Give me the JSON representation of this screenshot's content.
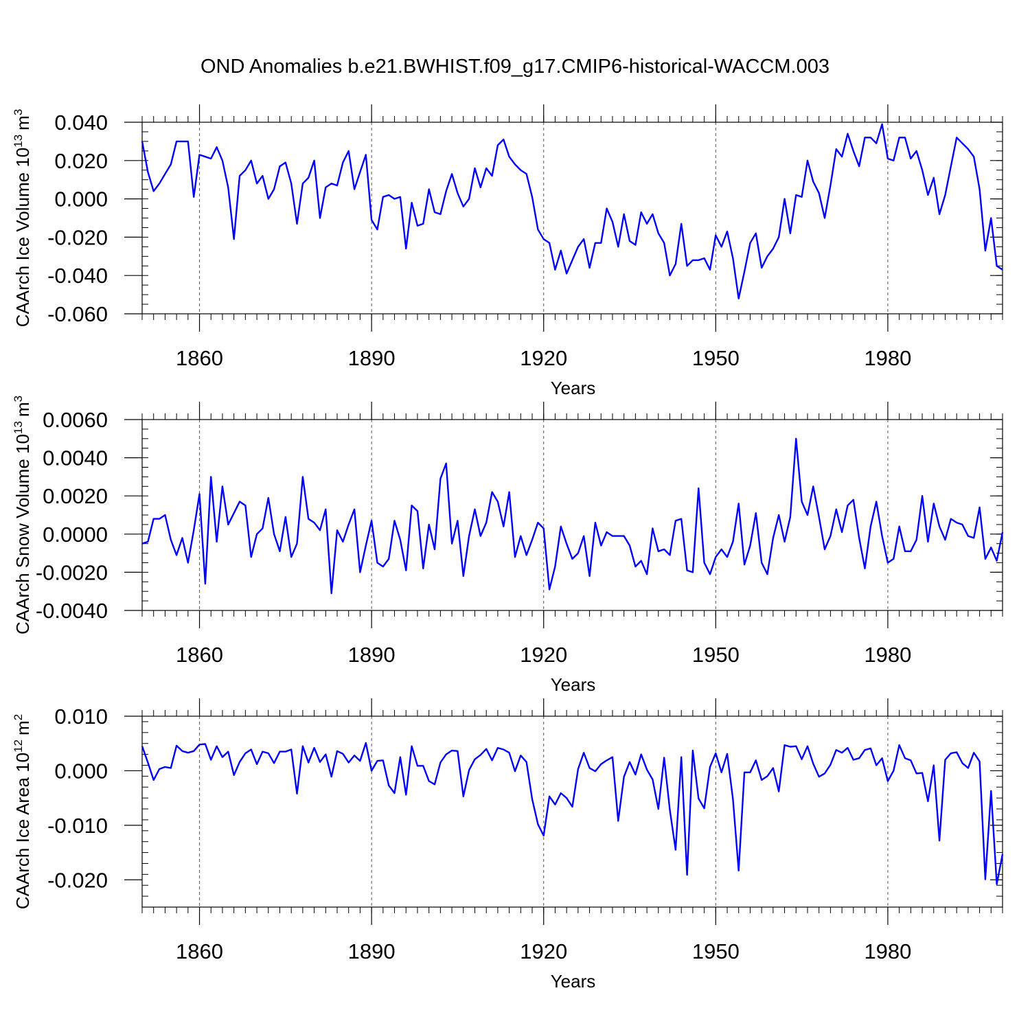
{
  "title": "OND Anomalies b.e21.BWHIST.f09_g17.CMIP6-historical-WACCM.003",
  "line_color": "#0000ff",
  "chart_data": [
    {
      "type": "line",
      "ylabel_main": "CAArch Ice Volume 10",
      "ylabel_exp": "13",
      "ylabel_unit": "m",
      "ylabel_unit_exp": "3",
      "xlabel": "Years",
      "xlim": [
        1850,
        2000
      ],
      "ylim": [
        -0.06,
        0.04
      ],
      "x_ticks": [
        1860,
        1890,
        1920,
        1950,
        1980
      ],
      "x_tick_labels": [
        "1860",
        "1890",
        "1920",
        "1950",
        "1980"
      ],
      "y_ticks": [
        -0.06,
        -0.04,
        -0.02,
        0.0,
        0.02,
        0.04
      ],
      "y_tick_labels": [
        "-0.060",
        "-0.040",
        "-0.020",
        "0.000",
        "0.020",
        "0.040"
      ],
      "y_minor_step": 0.005,
      "x_start": 1850,
      "values": [
        0.03,
        0.014,
        0.004,
        0.008,
        0.013,
        0.018,
        0.03,
        0.03,
        0.03,
        0.001,
        0.023,
        0.022,
        0.021,
        0.027,
        0.02,
        0.006,
        -0.021,
        0.012,
        0.015,
        0.02,
        0.008,
        0.012,
        0.0,
        0.005,
        0.017,
        0.019,
        0.008,
        -0.013,
        0.008,
        0.011,
        0.02,
        -0.01,
        0.006,
        0.008,
        0.007,
        0.019,
        0.025,
        0.005,
        0.014,
        0.023,
        -0.011,
        -0.016,
        0.001,
        0.002,
        0.0,
        0.001,
        -0.026,
        -0.002,
        -0.014,
        -0.013,
        0.005,
        -0.007,
        -0.008,
        0.004,
        0.013,
        0.003,
        -0.004,
        0.0,
        0.016,
        0.006,
        0.016,
        0.012,
        0.028,
        0.031,
        0.022,
        0.018,
        0.015,
        0.013,
        0.001,
        -0.016,
        -0.021,
        -0.023,
        -0.037,
        -0.027,
        -0.039,
        -0.032,
        -0.025,
        -0.021,
        -0.036,
        -0.023,
        -0.023,
        -0.005,
        -0.012,
        -0.025,
        -0.008,
        -0.022,
        -0.024,
        -0.007,
        -0.013,
        -0.008,
        -0.018,
        -0.023,
        -0.04,
        -0.034,
        -0.013,
        -0.035,
        -0.032,
        -0.032,
        -0.031,
        -0.037,
        -0.019,
        -0.025,
        -0.017,
        -0.031,
        -0.052,
        -0.038,
        -0.023,
        -0.018,
        -0.036,
        -0.03,
        -0.026,
        -0.02,
        0.0,
        -0.018,
        0.002,
        0.001,
        0.02,
        0.009,
        0.003,
        -0.01,
        0.007,
        0.026,
        0.022,
        0.034,
        0.025,
        0.017,
        0.032,
        0.032,
        0.029,
        0.039,
        0.021,
        0.02,
        0.032,
        0.032,
        0.021,
        0.025,
        0.015,
        0.002,
        0.011,
        -0.008,
        0.002,
        0.017,
        0.032,
        0.029,
        0.026,
        0.022,
        0.005,
        -0.027,
        -0.01,
        -0.035,
        -0.037
      ]
    },
    {
      "type": "line",
      "ylabel_main": "CAArch Snow Volume 10",
      "ylabel_exp": "13",
      "ylabel_unit": "m",
      "ylabel_unit_exp": "3",
      "xlabel": "Years",
      "xlim": [
        1850,
        2000
      ],
      "ylim": [
        -0.004,
        0.006
      ],
      "x_ticks": [
        1860,
        1890,
        1920,
        1950,
        1980
      ],
      "x_tick_labels": [
        "1860",
        "1890",
        "1920",
        "1950",
        "1980"
      ],
      "y_ticks": [
        -0.004,
        -0.002,
        0.0,
        0.002,
        0.004,
        0.006
      ],
      "y_tick_labels": [
        "-0.0040",
        "-0.0020",
        "0.0000",
        "0.0020",
        "0.0040",
        "0.0060"
      ],
      "y_minor_step": 0.0005,
      "x_start": 1850,
      "values": [
        -0.0005,
        -0.0004,
        0.0008,
        0.0008,
        0.001,
        -0.0003,
        -0.0011,
        -0.0002,
        -0.0015,
        0.0002,
        0.0021,
        -0.0026,
        0.003,
        -0.0004,
        0.0025,
        0.0005,
        0.0011,
        0.0017,
        0.0015,
        -0.0012,
        0.0,
        0.0003,
        0.0019,
        0.0,
        -0.0009,
        0.0009,
        -0.0012,
        -0.0005,
        0.003,
        0.0008,
        0.0006,
        0.0002,
        0.0013,
        -0.0031,
        0.0002,
        -0.0004,
        0.0005,
        0.0013,
        -0.002,
        -0.0006,
        0.0007,
        -0.0015,
        -0.0017,
        -0.0013,
        0.0007,
        -0.0003,
        -0.0019,
        0.0015,
        0.0012,
        -0.0018,
        0.0005,
        -0.0008,
        0.0029,
        0.0037,
        -0.0005,
        0.0007,
        -0.0022,
        -0.0001,
        0.0013,
        -0.0001,
        0.0006,
        0.0022,
        0.0017,
        0.0004,
        0.0022,
        -0.0012,
        -0.0001,
        -0.0011,
        -0.0003,
        0.0006,
        0.0003,
        -0.0029,
        -0.0017,
        0.0004,
        -0.0005,
        -0.0013,
        -0.001,
        -0.0001,
        -0.0022,
        0.0006,
        -0.0006,
        0.0001,
        -0.0001,
        -0.0001,
        -0.0001,
        -0.0006,
        -0.0017,
        -0.0014,
        -0.0021,
        0.0003,
        -0.0009,
        -0.0008,
        -0.0011,
        0.0007,
        0.0008,
        -0.0019,
        -0.002,
        0.0024,
        -0.0015,
        -0.0021,
        -0.0012,
        -0.0008,
        -0.0012,
        -0.0004,
        0.0016,
        -0.0016,
        -0.0006,
        0.0011,
        -0.0015,
        -0.0021,
        -0.0002,
        0.001,
        -0.0004,
        0.0009,
        0.005,
        0.0017,
        0.001,
        0.0025,
        0.0009,
        -0.0008,
        -0.0001,
        0.0013,
        0.0001,
        0.0015,
        0.0018,
        -0.0002,
        -0.0018,
        0.0004,
        0.0017,
        -0.0001,
        -0.0015,
        -0.0013,
        0.0004,
        -0.0009,
        -0.0009,
        -0.0003,
        0.002,
        -0.0004,
        0.0016,
        0.0004,
        -0.0003,
        0.0008,
        0.0006,
        0.0005,
        -0.0001,
        -0.0002,
        0.0014,
        -0.0013,
        -0.0007,
        -0.0014,
        0.0001
      ]
    },
    {
      "type": "line",
      "ylabel_main": "CAArch Ice Area 10",
      "ylabel_exp": "12",
      "ylabel_unit": "m",
      "ylabel_unit_exp": "2",
      "xlabel": "Years",
      "xlim": [
        1850,
        2000
      ],
      "ylim": [
        -0.025,
        0.01
      ],
      "x_ticks": [
        1860,
        1890,
        1920,
        1950,
        1980
      ],
      "x_tick_labels": [
        "1860",
        "1890",
        "1920",
        "1950",
        "1980"
      ],
      "y_ticks": [
        -0.02,
        -0.01,
        0.0,
        0.01
      ],
      "y_tick_labels": [
        "-0.020",
        "-0.010",
        "0.000",
        "0.010"
      ],
      "y_minor_step": 0.002,
      "x_start": 1850,
      "values": [
        0.0045,
        0.0015,
        -0.0017,
        0.0003,
        0.0007,
        0.0005,
        0.0046,
        0.0036,
        0.0033,
        0.0036,
        0.0048,
        0.0049,
        0.002,
        0.0045,
        0.0025,
        0.0035,
        -0.0008,
        0.0016,
        0.0032,
        0.0039,
        0.0012,
        0.0035,
        0.0032,
        0.0014,
        0.0035,
        0.0035,
        0.0039,
        -0.0042,
        0.0045,
        0.0015,
        0.0042,
        0.0016,
        0.003,
        -0.0011,
        0.0036,
        0.0031,
        0.0015,
        0.0028,
        0.0018,
        0.0051,
        0.0,
        0.0018,
        0.0019,
        -0.0027,
        -0.0041,
        0.0025,
        -0.0044,
        0.0045,
        0.0009,
        0.0009,
        -0.0019,
        -0.0025,
        0.0015,
        0.003,
        0.0037,
        0.0036,
        -0.0047,
        0.0001,
        0.0021,
        0.0029,
        0.004,
        0.0019,
        0.0042,
        0.0039,
        0.0033,
        -0.0001,
        0.0028,
        0.0016,
        -0.0052,
        -0.0098,
        -0.0119,
        -0.0047,
        -0.0062,
        -0.0041,
        -0.005,
        -0.0066,
        0.0003,
        0.0033,
        0.0005,
        -0.0001,
        0.0012,
        0.0019,
        0.0025,
        -0.0092,
        -0.0011,
        0.0016,
        -0.0007,
        0.003,
        0.0002,
        -0.0016,
        -0.007,
        0.0024,
        -0.0072,
        -0.0145,
        0.0025,
        -0.0191,
        0.0037,
        -0.0051,
        -0.0069,
        0.0007,
        0.0032,
        -0.0003,
        0.0031,
        -0.0052,
        -0.0183,
        -0.0003,
        -0.0003,
        0.0019,
        -0.0017,
        -0.001,
        0.0005,
        -0.0038,
        0.0047,
        0.0044,
        0.0045,
        0.0021,
        0.0045,
        0.0013,
        -0.0011,
        -0.0005,
        0.0011,
        0.0038,
        0.0033,
        0.0042,
        0.002,
        0.0023,
        0.0038,
        0.0041,
        0.001,
        0.0023,
        -0.0019,
        0.0,
        0.0047,
        0.0023,
        0.0019,
        -0.0005,
        -0.0004,
        -0.0056,
        0.001,
        -0.0128,
        0.002,
        0.0032,
        0.0034,
        0.0014,
        0.0005,
        0.0033,
        0.0017,
        -0.0199,
        -0.0037,
        -0.0208,
        -0.0153
      ]
    }
  ]
}
